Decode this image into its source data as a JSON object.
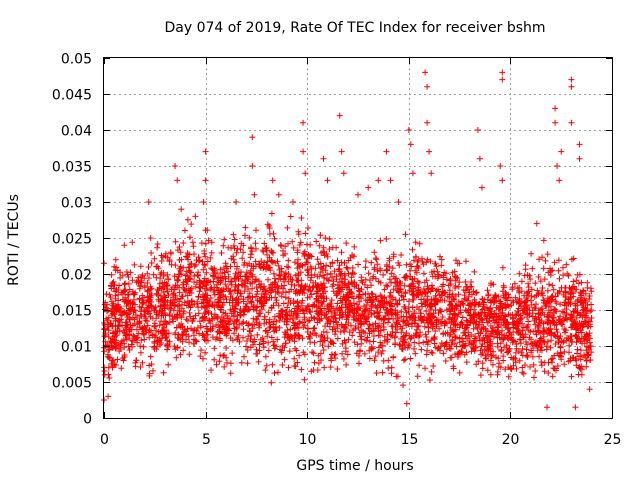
{
  "chart_data": {
    "type": "scatter",
    "title": "Day 074 of 2019, Rate Of TEC Index for receiver bshm",
    "xlabel": "GPS time / hours",
    "ylabel": "ROTI / TECUs",
    "xlim": [
      0,
      25
    ],
    "ylim": [
      0,
      0.05
    ],
    "x_ticks": [
      "0",
      "5",
      "10",
      "15",
      "20",
      "25"
    ],
    "x_tick_values": [
      0,
      5,
      10,
      15,
      20,
      25
    ],
    "y_ticks": [
      "0",
      "0.005",
      "0.01",
      "0.015",
      "0.02",
      "0.025",
      "0.03",
      "0.035",
      "0.04",
      "0.045",
      "0.05"
    ],
    "y_tick_values": [
      0,
      0.005,
      0.01,
      0.015,
      0.02,
      0.025,
      0.03,
      0.035,
      0.04,
      0.045,
      0.05
    ],
    "grid": true,
    "marker": "+",
    "color": "#ff0000",
    "data_x_range": [
      0,
      24
    ],
    "band": {
      "x": [
        0,
        1,
        2,
        3,
        4,
        5,
        6,
        7,
        8,
        9,
        10,
        11,
        12,
        13,
        14,
        15,
        16,
        17,
        18,
        19,
        20,
        21,
        22,
        23,
        24
      ],
      "low": [
        0.003,
        0.003,
        0.003,
        0.004,
        0.004,
        0.004,
        0.004,
        0.004,
        0.004,
        0.004,
        0.004,
        0.004,
        0.004,
        0.004,
        0.003,
        0.003,
        0.004,
        0.004,
        0.004,
        0.004,
        0.003,
        0.002,
        0.002,
        0.003,
        0.003
      ],
      "high": [
        0.019,
        0.023,
        0.022,
        0.024,
        0.026,
        0.026,
        0.024,
        0.026,
        0.027,
        0.026,
        0.026,
        0.025,
        0.024,
        0.023,
        0.024,
        0.025,
        0.024,
        0.022,
        0.02,
        0.02,
        0.02,
        0.023,
        0.024,
        0.022,
        0.019
      ]
    },
    "points": [
      [
        0.0,
        0.0215
      ],
      [
        0.0,
        0.0025
      ],
      [
        0.5,
        0.021
      ],
      [
        1.0,
        0.024
      ],
      [
        2.2,
        0.03
      ],
      [
        2.3,
        0.025
      ],
      [
        3.5,
        0.035
      ],
      [
        3.6,
        0.033
      ],
      [
        3.8,
        0.029
      ],
      [
        4.5,
        0.028
      ],
      [
        5.0,
        0.037
      ],
      [
        5.0,
        0.033
      ],
      [
        4.9,
        0.03
      ],
      [
        6.5,
        0.03
      ],
      [
        7.3,
        0.039
      ],
      [
        7.3,
        0.035
      ],
      [
        7.4,
        0.031
      ],
      [
        8.3,
        0.033
      ],
      [
        8.6,
        0.031
      ],
      [
        9.3,
        0.03
      ],
      [
        9.8,
        0.041
      ],
      [
        9.8,
        0.037
      ],
      [
        9.9,
        0.034
      ],
      [
        10.8,
        0.036
      ],
      [
        11.0,
        0.033
      ],
      [
        11.6,
        0.042
      ],
      [
        11.7,
        0.037
      ],
      [
        11.8,
        0.034
      ],
      [
        12.5,
        0.031
      ],
      [
        13.0,
        0.032
      ],
      [
        13.5,
        0.033
      ],
      [
        13.9,
        0.037
      ],
      [
        14.1,
        0.033
      ],
      [
        14.5,
        0.03
      ],
      [
        15.0,
        0.04
      ],
      [
        15.1,
        0.038
      ],
      [
        15.2,
        0.034
      ],
      [
        15.8,
        0.048
      ],
      [
        15.9,
        0.046
      ],
      [
        15.9,
        0.041
      ],
      [
        16.0,
        0.037
      ],
      [
        16.1,
        0.034
      ],
      [
        18.4,
        0.04
      ],
      [
        18.5,
        0.036
      ],
      [
        18.6,
        0.032
      ],
      [
        19.6,
        0.048
      ],
      [
        19.6,
        0.047
      ],
      [
        19.5,
        0.035
      ],
      [
        19.6,
        0.033
      ],
      [
        21.3,
        0.027
      ],
      [
        22.2,
        0.043
      ],
      [
        22.2,
        0.041
      ],
      [
        22.3,
        0.035
      ],
      [
        22.4,
        0.033
      ],
      [
        22.5,
        0.037
      ],
      [
        23.0,
        0.047
      ],
      [
        23.0,
        0.046
      ],
      [
        23.0,
        0.041
      ],
      [
        23.4,
        0.038
      ],
      [
        23.4,
        0.036
      ],
      [
        23.2,
        0.0015
      ],
      [
        21.8,
        0.0015
      ],
      [
        14.9,
        0.002
      ],
      [
        0.2,
        0.003
      ],
      [
        23.9,
        0.004
      ]
    ]
  }
}
